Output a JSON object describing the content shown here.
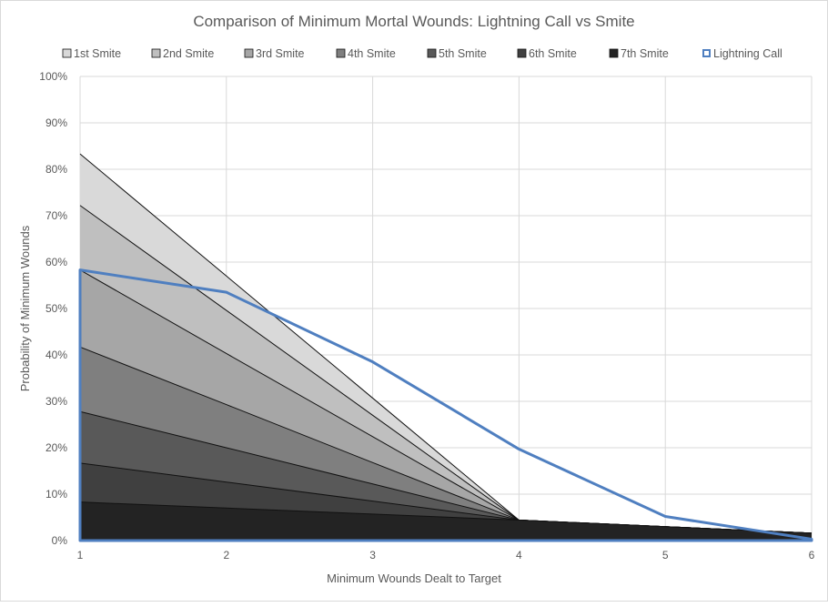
{
  "chart_data": {
    "type": "area",
    "title": "Comparison of Minimum Mortal Wounds: Lightning Call vs Smite",
    "xlabel": "Minimum  Wounds Dealt to Target",
    "ylabel": "Probability of Minimum Wounds",
    "categories": [
      "1",
      "2",
      "3",
      "4",
      "5",
      "6"
    ],
    "x": [
      1,
      2,
      3,
      4,
      5,
      6
    ],
    "xlim": [
      1,
      6
    ],
    "ylim": [
      0,
      100
    ],
    "yticks": [
      "0%",
      "10%",
      "20%",
      "30%",
      "40%",
      "50%",
      "60%",
      "70%",
      "80%",
      "90%",
      "100%"
    ],
    "y_unit": "%",
    "grid": true,
    "legend_position": "top",
    "series": [
      {
        "name": "1st Smite",
        "color": "#d9d9d9",
        "values": [
          83.3,
          57.0,
          30.7,
          4.4,
          3.0,
          1.6
        ]
      },
      {
        "name": "2nd Smite",
        "color": "#bfbfbf",
        "values": [
          72.2,
          49.6,
          27.0,
          4.4,
          3.0,
          1.6
        ]
      },
      {
        "name": "3rd Smite",
        "color": "#a6a6a6",
        "values": [
          58.3,
          40.3,
          22.4,
          4.4,
          3.0,
          1.6
        ]
      },
      {
        "name": "4th Smite",
        "color": "#7f7f7f",
        "values": [
          41.7,
          29.3,
          16.8,
          4.4,
          3.0,
          1.6
        ]
      },
      {
        "name": "5th Smite",
        "color": "#595959",
        "values": [
          27.8,
          20.0,
          12.2,
          4.4,
          3.0,
          1.6
        ]
      },
      {
        "name": "6th Smite",
        "color": "#404040",
        "values": [
          16.7,
          12.6,
          8.5,
          4.4,
          3.0,
          1.6
        ]
      },
      {
        "name": "7th Smite",
        "color": "#232323",
        "values": [
          8.3,
          7.0,
          5.7,
          4.4,
          3.0,
          1.6
        ]
      },
      {
        "name": "Lightning Call",
        "color": "#4f7fc0",
        "outline_only": true,
        "values": [
          58.3,
          53.5,
          38.5,
          19.7,
          5.2,
          0.3
        ]
      }
    ]
  }
}
